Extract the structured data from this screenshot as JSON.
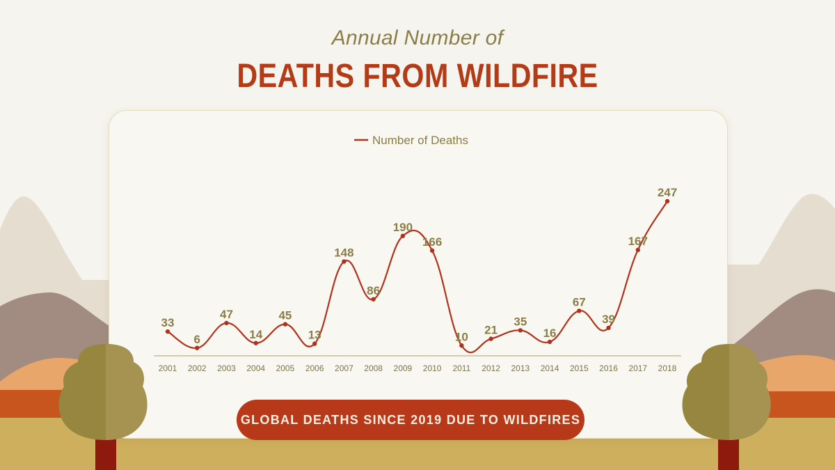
{
  "header": {
    "subtitle": "Annual Number of",
    "title": "DEATHS FROM WILDFIRE"
  },
  "banner": {
    "label": "GLOBAL DEATHS SINCE 2019 DUE TO WILDFIRES"
  },
  "colors": {
    "line": "#b1321a",
    "title": "#b33b17",
    "label": "#8a7d46",
    "pill": "#b7391a",
    "ground": "#cdaf5d"
  },
  "chart_data": {
    "type": "line",
    "x": [
      "2001",
      "2002",
      "2003",
      "2004",
      "2005",
      "2006",
      "2007",
      "2008",
      "2009",
      "2010",
      "2011",
      "2012",
      "2013",
      "2014",
      "2015",
      "2016",
      "2017",
      "2018"
    ],
    "series": [
      {
        "name": "Number of Deaths",
        "values": [
          33,
          6,
          47,
          14,
          45,
          13,
          148,
          86,
          190,
          166,
          10,
          21,
          35,
          16,
          67,
          39,
          167,
          247
        ]
      }
    ],
    "legend_position": "top",
    "grid": false,
    "data_labels": true,
    "ylim": [
      0,
      247
    ]
  }
}
